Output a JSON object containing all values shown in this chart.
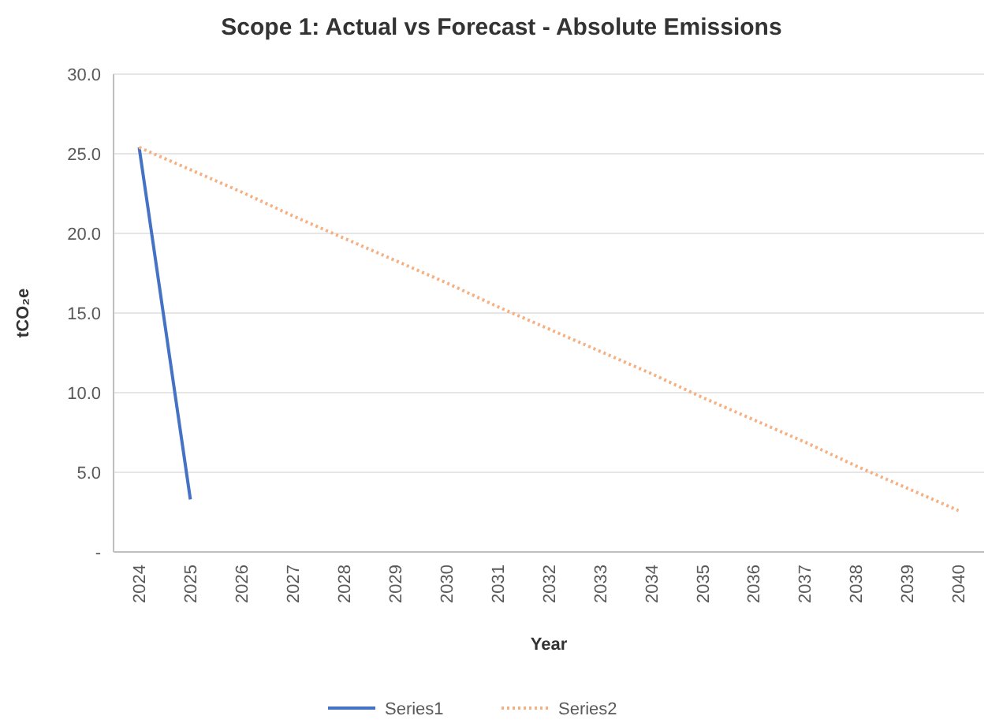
{
  "chart_data": {
    "type": "line",
    "title": "Scope 1: Actual vs Forecast - Absolute Emissions",
    "xlabel": "Year",
    "ylabel": "tCO₂e",
    "categories": [
      "2024",
      "2025",
      "2026",
      "2027",
      "2028",
      "2029",
      "2030",
      "2031",
      "2032",
      "2033",
      "2034",
      "2035",
      "2036",
      "2037",
      "2038",
      "2039",
      "2040"
    ],
    "series": [
      {
        "name": "Series1",
        "color": "#4472c4",
        "line_style": "solid",
        "values": [
          25.4,
          3.3,
          null,
          null,
          null,
          null,
          null,
          null,
          null,
          null,
          null,
          null,
          null,
          null,
          null,
          null,
          null
        ]
      },
      {
        "name": "Series2",
        "color": "#f4b183",
        "line_style": "dotted",
        "values": [
          25.4,
          24.0,
          22.6,
          21.1,
          19.7,
          18.3,
          16.9,
          15.4,
          14.0,
          12.6,
          11.2,
          9.7,
          8.3,
          6.9,
          5.4,
          4.0,
          2.6
        ]
      }
    ],
    "ylim": [
      0,
      30
    ],
    "yticks": [
      {
        "value": 0,
        "label": "-"
      },
      {
        "value": 5,
        "label": "5.0"
      },
      {
        "value": 10,
        "label": "10.0"
      },
      {
        "value": 15,
        "label": "15.0"
      },
      {
        "value": 20,
        "label": "20.0"
      },
      {
        "value": 25,
        "label": "25.0"
      },
      {
        "value": 30,
        "label": "30.0"
      }
    ],
    "grid": "y",
    "legend": "bottom",
    "marker": "none"
  }
}
